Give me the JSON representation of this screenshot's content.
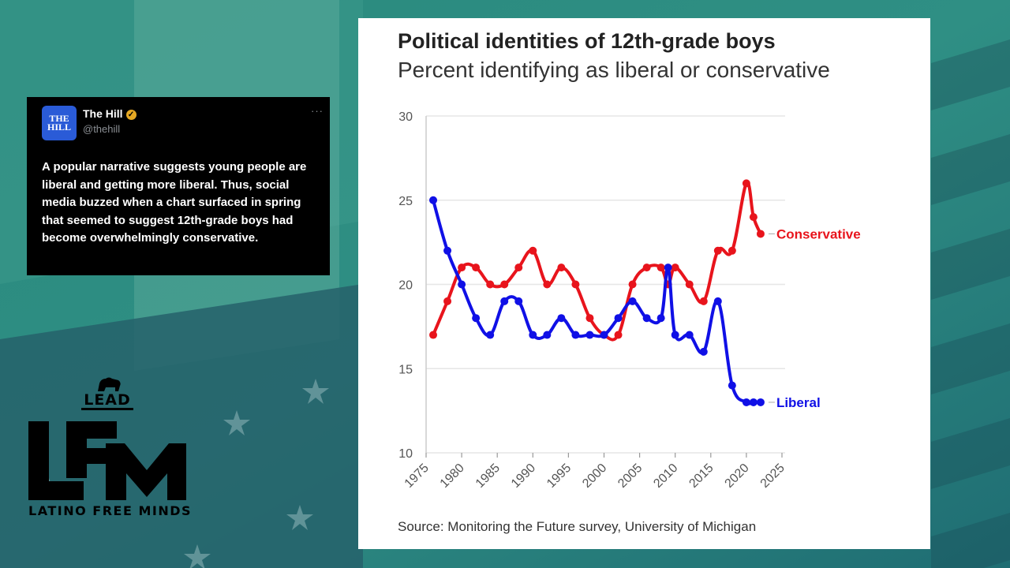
{
  "tweet": {
    "avatar_text": "THE HILL",
    "name": "The Hill",
    "handle": "@thehill",
    "more": "···",
    "text": "A popular narrative suggests young people are liberal and getting more liberal. Thus, social media buzzed when a chart surfaced in spring that seemed to suggest 12th-grade boys had become overwhelmingly conservative."
  },
  "logos": {
    "lead": "LEAD",
    "lfm": "LFM",
    "lfm_tagline": "LATINO FREE MINDS"
  },
  "colors": {
    "conservative": "#e8141c",
    "liberal": "#1010e6",
    "card_bg": "#ffffff",
    "tweet_bg": "#000000",
    "verified": "#e5a823"
  },
  "chart_data": {
    "type": "line",
    "title": "Political identities of 12th-grade boys",
    "subtitle": "Percent identifying as liberal or conservative",
    "source": "Source: Monitoring the Future survey, University of Michigan",
    "xlabel": "",
    "ylabel": "",
    "xlim": [
      1975,
      2025
    ],
    "ylim": [
      10,
      30
    ],
    "x_ticks": [
      1975,
      1980,
      1985,
      1990,
      1995,
      2000,
      2005,
      2010,
      2015,
      2020,
      2025
    ],
    "y_ticks": [
      10,
      15,
      20,
      25,
      30
    ],
    "grid": "horizontal",
    "series": [
      {
        "name": "Conservative",
        "color": "#e8141c",
        "x": [
          1976,
          1978,
          1980,
          1982,
          1984,
          1986,
          1988,
          1990,
          1992,
          1994,
          1996,
          1998,
          2000,
          2002,
          2004,
          2006,
          2008,
          2009,
          2010,
          2012,
          2014,
          2016,
          2018,
          2020,
          2021,
          2022
        ],
        "y": [
          17,
          19,
          21,
          21,
          20,
          20,
          21,
          22,
          20,
          21,
          20,
          18,
          17,
          17,
          20,
          21,
          21,
          20,
          21,
          20,
          19,
          22,
          22,
          26,
          24,
          23
        ]
      },
      {
        "name": "Liberal",
        "color": "#1010e6",
        "x": [
          1976,
          1978,
          1980,
          1982,
          1984,
          1986,
          1988,
          1990,
          1992,
          1994,
          1996,
          1998,
          2000,
          2002,
          2004,
          2006,
          2008,
          2009,
          2010,
          2012,
          2014,
          2016,
          2018,
          2020,
          2021,
          2022
        ],
        "y": [
          25,
          22,
          20,
          18,
          17,
          19,
          19,
          17,
          17,
          18,
          17,
          17,
          17,
          18,
          19,
          18,
          18,
          21,
          17,
          17,
          16,
          19,
          14,
          13,
          13,
          13
        ]
      }
    ]
  }
}
